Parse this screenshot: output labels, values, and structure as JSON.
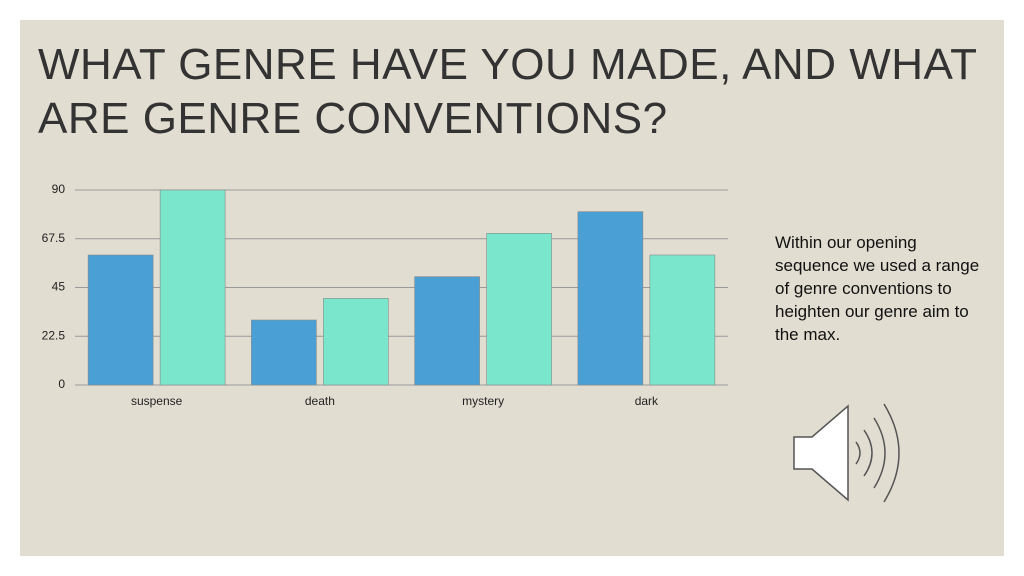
{
  "slide": {
    "title": "WHAT GENRE HAVE YOU MADE, AND WHAT ARE GENRE CONVENTIONS?",
    "body": "Within our opening sequence we used a range of genre conventions to heighten our genre aim to the max."
  },
  "chart_data": {
    "type": "bar",
    "categories": [
      "suspense",
      "death",
      "mystery",
      "dark"
    ],
    "series": [
      {
        "color": "#4a9fd4",
        "values": [
          60,
          30,
          50,
          80
        ]
      },
      {
        "color": "#7ae6cb",
        "values": [
          90,
          40,
          70,
          60
        ]
      }
    ],
    "ylim": [
      0,
      90
    ],
    "yticks": [
      0,
      22.5,
      45,
      67.5,
      90
    ],
    "grid": true
  }
}
